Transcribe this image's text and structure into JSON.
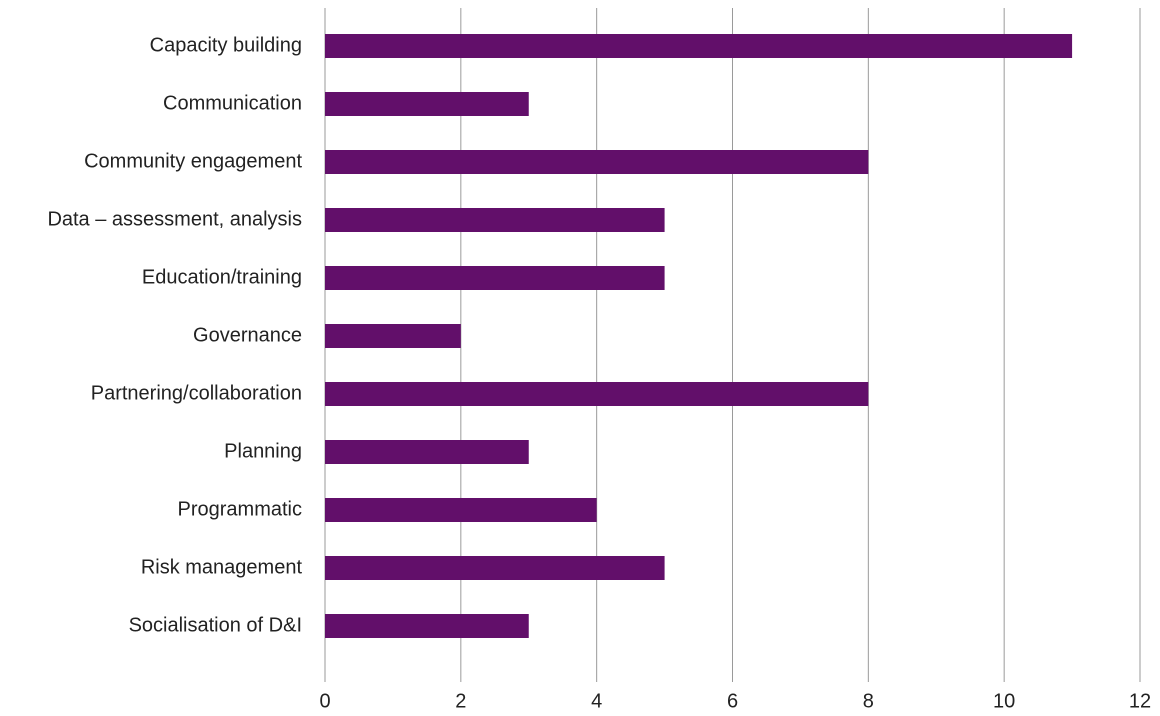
{
  "chart_data": {
    "type": "hbar",
    "categories": [
      "Capacity building",
      "Communication",
      "Community engagement",
      "Data – assessment, analysis",
      "Education/training",
      "Governance",
      "Partnering/collaboration",
      "Planning",
      "Programmatic",
      "Risk management",
      "Socialisation of D&I"
    ],
    "values": [
      11,
      3,
      8,
      5,
      5,
      2,
      8,
      3,
      4,
      5,
      3
    ],
    "color": "#620f6a",
    "xlim": [
      0,
      12
    ],
    "xticks": [
      0,
      2,
      4,
      6,
      8,
      10,
      12
    ],
    "grid": true
  }
}
